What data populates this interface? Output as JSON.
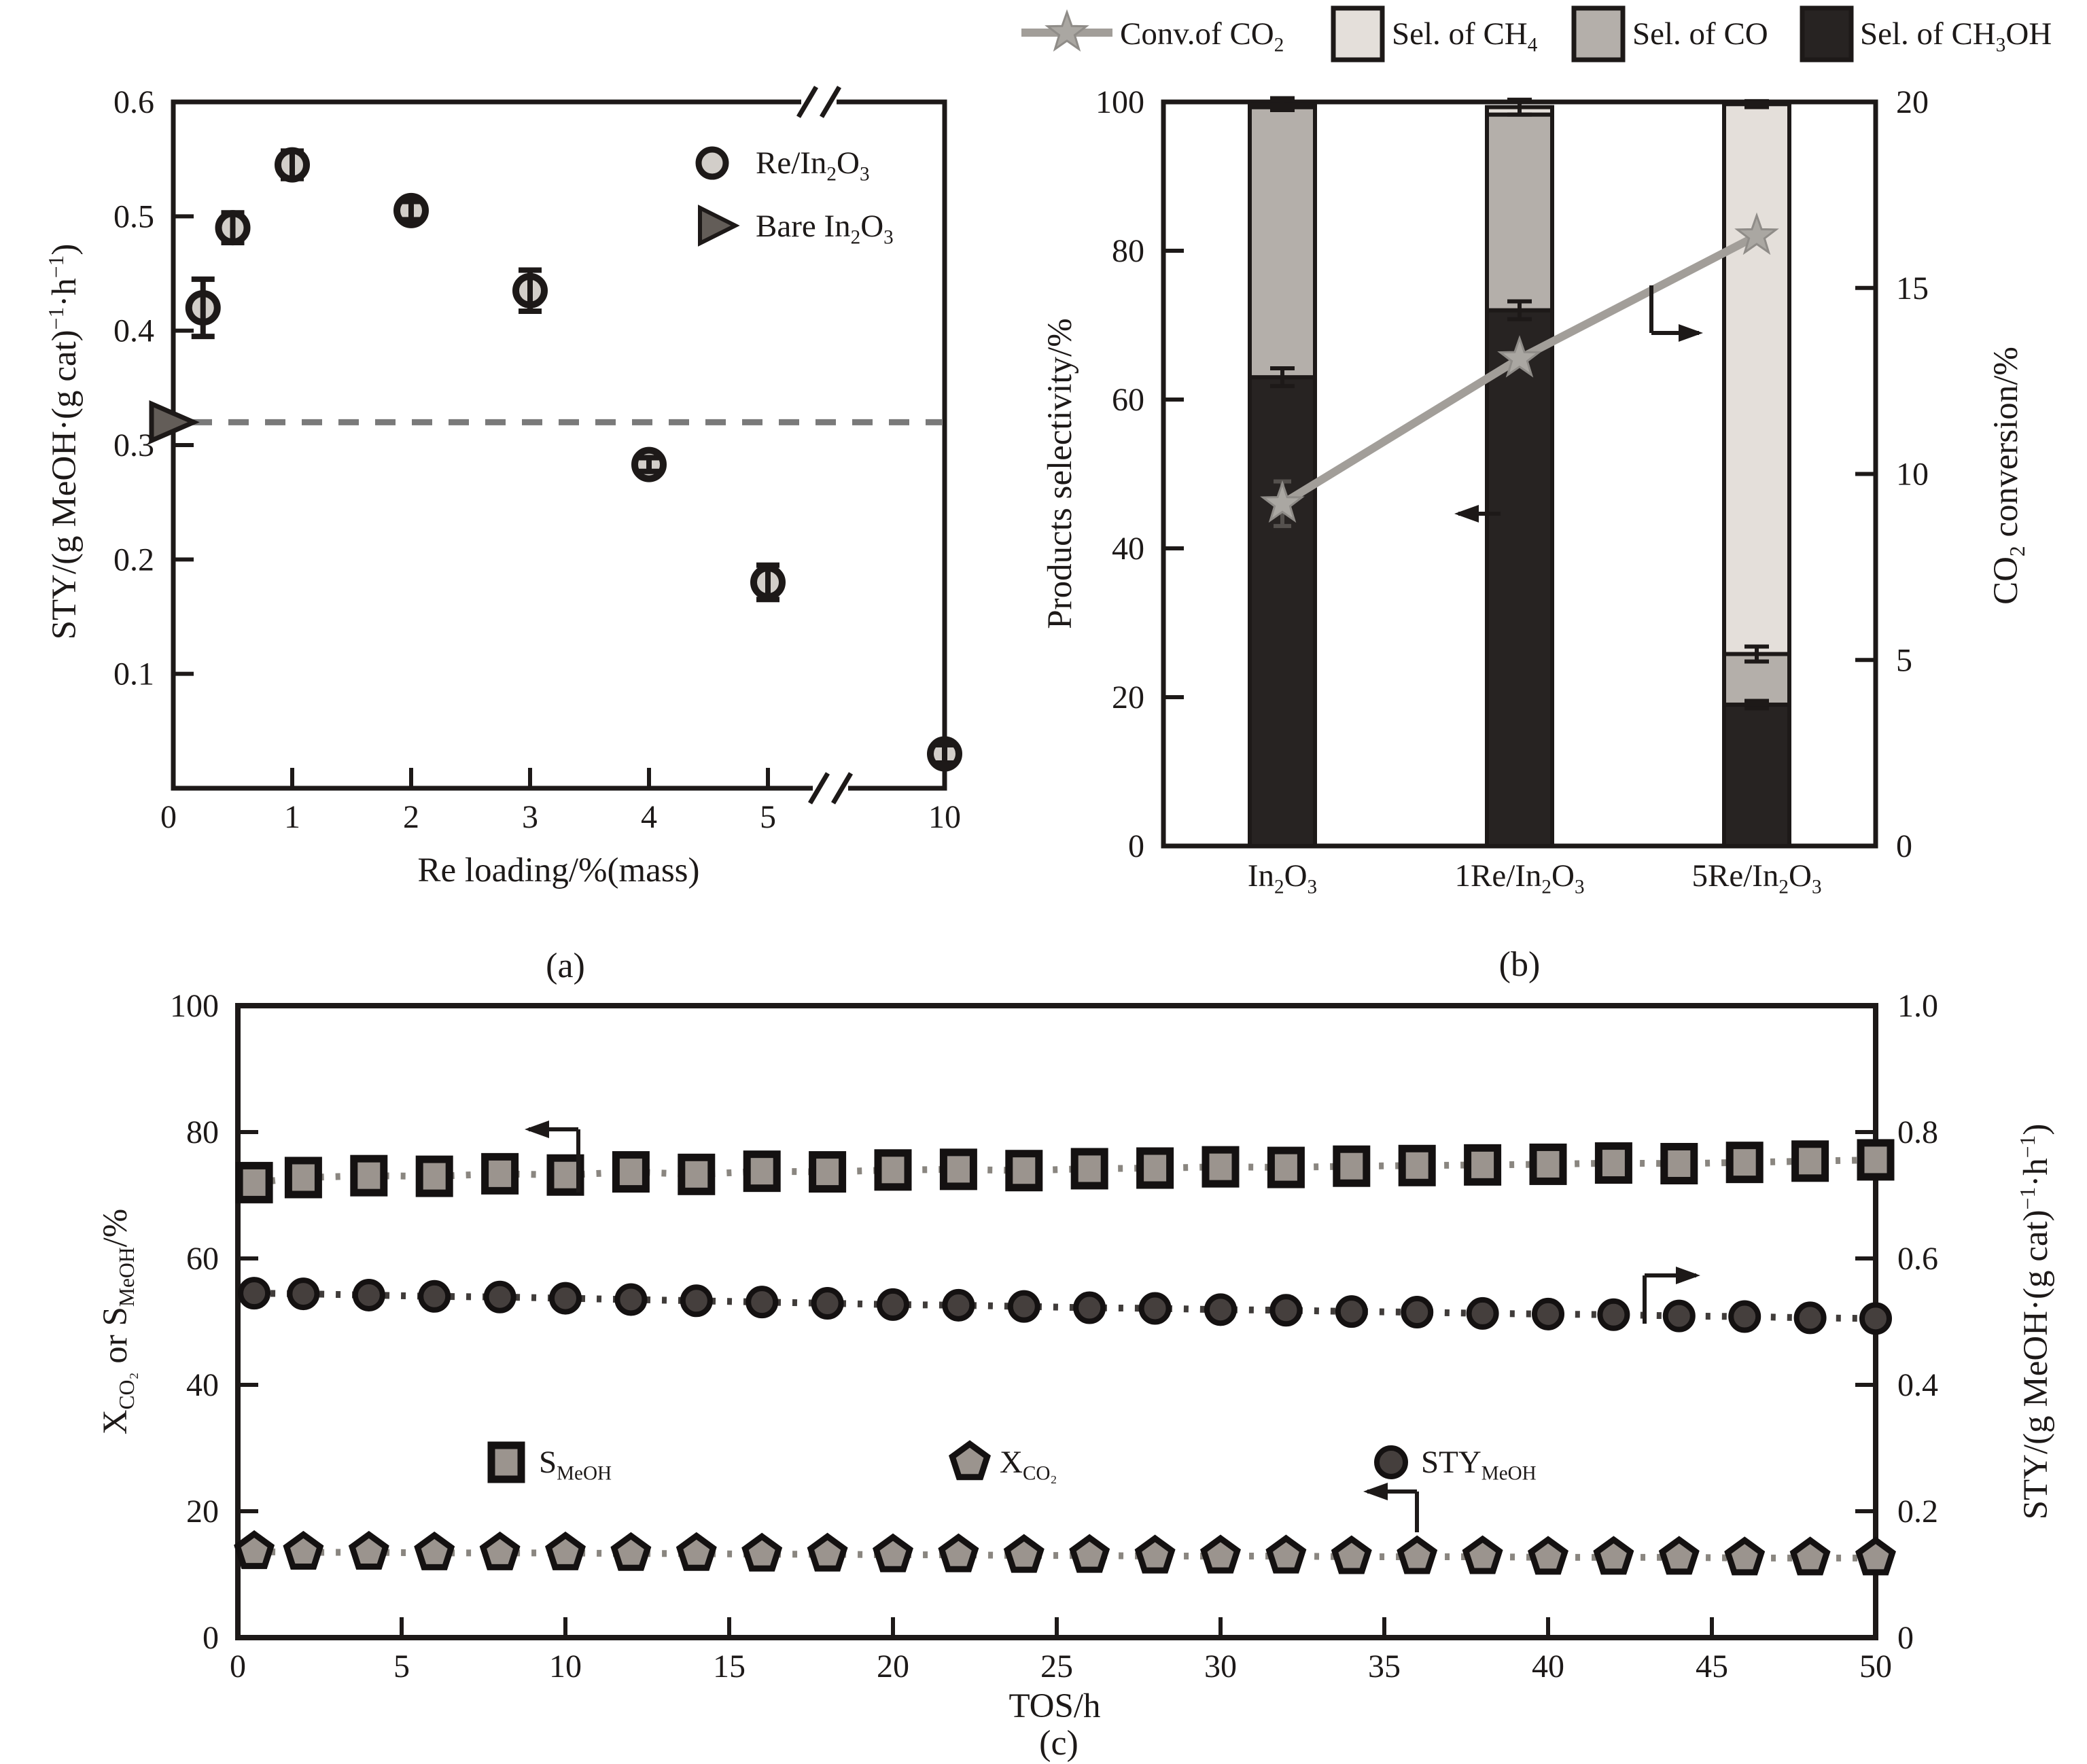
{
  "figure": {
    "background": "#ffffff",
    "panel_labels": {
      "a": "(a)",
      "b": "(b)",
      "c": "(c)"
    },
    "colors": {
      "ink": "#1d1918",
      "a_marker_fill": "#d2cec9",
      "a_triangle_fill": "#635d58",
      "a_dash_line": "#7a7a7a",
      "b_ch4": "#e4dfda",
      "b_co": "#b4afaa",
      "b_ch3oh": "#272322",
      "b_conv_line": "#a29e99",
      "b_star_fill": "#aaa7a2",
      "c_gray_fill": "#9b948e",
      "c_dark_fill": "#453f3d",
      "c_gray_line": "#8a8680",
      "c_dark_line": "#403c3a"
    }
  },
  "chart_data": [
    {
      "panel": "a",
      "type": "scatter",
      "xlabel": "Re loading/%(mass)",
      "ylabel": "STY/(g MeOH·(g cat)^{−1}·h^{−1})",
      "xlim": [
        0,
        5
      ],
      "x_break": {
        "between": [
          5,
          10
        ]
      },
      "xticks": [
        0,
        1,
        2,
        3,
        4,
        5
      ],
      "xtick_labels": [
        "0",
        "1",
        "2",
        "3",
        "4",
        "5"
      ],
      "x_break_tick_label": "10",
      "ylim": [
        0,
        0.6
      ],
      "yticks": [
        0.6,
        0.5,
        0.4,
        0.3,
        0.2,
        0.1
      ],
      "ytick_labels": [
        "0.6",
        "0.5",
        "0.4",
        "0.3",
        "0.2",
        "0.1"
      ],
      "legend": [
        {
          "label": "Re/In_{2}O_{3}",
          "marker": "circle"
        },
        {
          "label": "Bare In_{2}O_{3}",
          "marker": "triangle"
        }
      ],
      "series": [
        {
          "name": "Re/In_{2}O_{3}",
          "marker": "circle",
          "x": [
            0.25,
            0.5,
            1,
            2,
            3,
            4,
            5,
            10
          ],
          "y": [
            0.42,
            0.49,
            0.545,
            0.505,
            0.435,
            0.283,
            0.18,
            0.03
          ],
          "yerr": [
            0.025,
            0.013,
            0.012,
            0.008,
            0.018,
            0.006,
            0.015,
            0.008
          ]
        },
        {
          "name": "Bare In_{2}O_{3}",
          "marker": "triangle-right",
          "x": [
            0
          ],
          "y": [
            0.32
          ],
          "yerr": [
            0
          ]
        }
      ],
      "reference_line": {
        "y": 0.32,
        "style": "dashed"
      }
    },
    {
      "panel": "b",
      "type": "stacked-bar-line",
      "categories": [
        "In_{2}O_{3}",
        "1Re/In_{2}O_{3}",
        "5Re/In_{2}O_{3}"
      ],
      "ylabel_left": "Products selectivity/%",
      "ylabel_right": "CO_{2} conversion/%",
      "ylim_left": [
        0,
        100
      ],
      "yticks_left": [
        0,
        20,
        40,
        60,
        80,
        100
      ],
      "ylim_right": [
        0,
        20
      ],
      "yticks_right": [
        0,
        5,
        10,
        15,
        20
      ],
      "legend": [
        {
          "label": "Conv.of CO_{2}",
          "marker": "star-line"
        },
        {
          "label": "Sel. of CH_{4}",
          "marker": "box",
          "color_key": "b_ch4"
        },
        {
          "label": "Sel. of CO",
          "marker": "box",
          "color_key": "b_co"
        },
        {
          "label": "Sel. of CH_{3}OH",
          "marker": "box",
          "color_key": "b_ch3oh"
        }
      ],
      "stacks": [
        {
          "name": "Sel. of CH_{3}OH",
          "color_key": "b_ch3oh",
          "values": [
            63,
            72,
            19
          ],
          "err": [
            1.2,
            1.2,
            0.5
          ]
        },
        {
          "name": "Sel. of CO",
          "color_key": "b_co",
          "values": [
            36.3,
            26.3,
            6.8
          ],
          "err": [
            0,
            0,
            1.0
          ]
        },
        {
          "name": "Sel. of CH_{4}",
          "color_key": "b_ch4",
          "values": [
            0.4,
            1.0,
            73.9
          ],
          "err": [
            0.8,
            1.0,
            0.4
          ]
        }
      ],
      "line": {
        "name": "Conv.of CO_{2}",
        "axis": "right",
        "values": [
          9.2,
          13.1,
          16.4
        ],
        "yerr": [
          0.6,
          0.4,
          0.3
        ]
      }
    },
    {
      "panel": "c",
      "type": "line-scatter",
      "xlabel": "TOS/h",
      "ylabel_left": "X_{CO₂} or S_{MeOH}/%",
      "ylabel_right": "STY/(g MeOH·(g cat)^{−1}·h^{−1})",
      "xlim": [
        0,
        50
      ],
      "xticks": [
        0,
        5,
        10,
        15,
        20,
        25,
        30,
        35,
        40,
        45,
        50
      ],
      "ylim_left": [
        0,
        100
      ],
      "yticks_left": [
        0,
        20,
        40,
        60,
        80,
        100
      ],
      "ylim_right": [
        0,
        1.0
      ],
      "ytick_labels_right": [
        "0",
        "0.2",
        "0.4",
        "0.6",
        "0.8",
        "1.0"
      ],
      "yticks_right": [
        0,
        0.2,
        0.4,
        0.6,
        0.8,
        1.0
      ],
      "legend": [
        {
          "label": "S_{MeOH}",
          "marker": "square"
        },
        {
          "label": "X_{CO₂}",
          "marker": "pentagon"
        },
        {
          "label": "STY_{MeOH}",
          "marker": "circle"
        }
      ],
      "x": [
        0.5,
        2,
        4,
        6,
        8,
        10,
        12,
        14,
        16,
        18,
        20,
        22,
        24,
        26,
        28,
        30,
        32,
        34,
        36,
        38,
        40,
        42,
        44,
        46,
        48,
        50
      ],
      "series": [
        {
          "name": "S_{MeOH}",
          "axis": "left",
          "marker": "square",
          "color_key": "c_gray_fill",
          "line_key": "c_gray_line",
          "y": [
            72.0,
            72.8,
            73.1,
            73.0,
            73.4,
            73.2,
            73.7,
            73.3,
            73.8,
            73.7,
            74.0,
            74.1,
            73.9,
            74.2,
            74.3,
            74.5,
            74.4,
            74.6,
            74.7,
            74.8,
            74.9,
            75.1,
            75.0,
            75.2,
            75.4,
            75.6
          ]
        },
        {
          "name": "X_{CO₂}",
          "axis": "left",
          "marker": "pentagon",
          "color_key": "c_gray_fill",
          "line_key": "c_gray_line",
          "y": [
            13.6,
            13.5,
            13.5,
            13.4,
            13.4,
            13.4,
            13.3,
            13.3,
            13.2,
            13.2,
            13.1,
            13.1,
            13.0,
            13.0,
            12.9,
            12.9,
            12.9,
            12.8,
            12.8,
            12.8,
            12.7,
            12.7,
            12.7,
            12.6,
            12.6,
            12.6
          ]
        },
        {
          "name": "STY_{MeOH}",
          "axis": "right",
          "marker": "circle",
          "color_key": "c_dark_fill",
          "line_key": "c_dark_line",
          "y": [
            0.545,
            0.544,
            0.542,
            0.54,
            0.539,
            0.537,
            0.535,
            0.533,
            0.531,
            0.529,
            0.527,
            0.526,
            0.524,
            0.522,
            0.521,
            0.519,
            0.518,
            0.516,
            0.515,
            0.513,
            0.512,
            0.511,
            0.509,
            0.508,
            0.506,
            0.505
          ]
        }
      ]
    }
  ]
}
